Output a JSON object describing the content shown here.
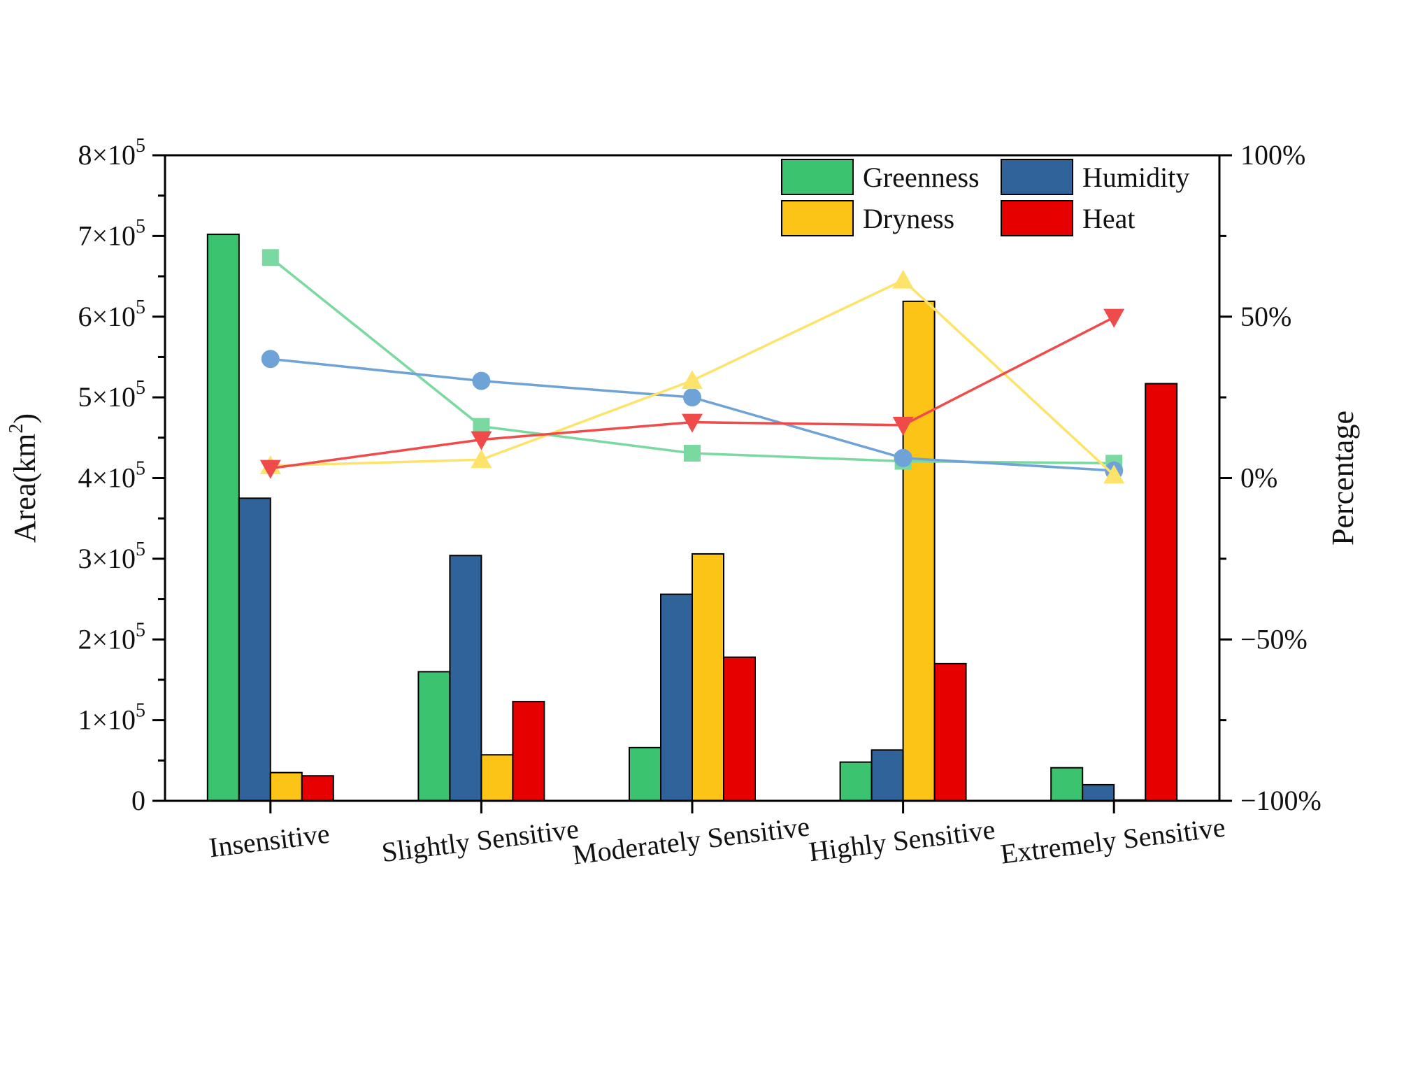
{
  "chart_data": {
    "type": "bar",
    "categories": [
      "Insensitive",
      "Slightly Sensitive",
      "Moderately Sensitive",
      "Highly Sensitive",
      "Extremely Sensitive"
    ],
    "series": [
      {
        "name": "Greenness",
        "color": "#3cc36f",
        "values": [
          702000,
          160000,
          66000,
          48000,
          41000
        ]
      },
      {
        "name": "Humidity",
        "color": "#306399",
        "values": [
          375000,
          304000,
          256000,
          63000,
          20000
        ]
      },
      {
        "name": "Dryness",
        "color": "#fbc417",
        "values": [
          35000,
          57000,
          306000,
          619000,
          1000
        ]
      },
      {
        "name": "Heat",
        "color": "#e60000",
        "values": [
          31000,
          123000,
          178000,
          170000,
          517000
        ]
      }
    ],
    "line_series": [
      {
        "name": "Greenness",
        "color": "#7ad9a0",
        "marker": "square",
        "values": [
          68.3,
          16.0,
          7.7,
          5.2,
          4.6
        ]
      },
      {
        "name": "Humidity",
        "color": "#6fa2d6",
        "marker": "circle",
        "values": [
          36.9,
          30.1,
          25.0,
          6.2,
          2.3
        ]
      },
      {
        "name": "Dryness",
        "color": "#fde36a",
        "marker": "triangle-up",
        "values": [
          3.8,
          5.7,
          30.2,
          61.3,
          0.9
        ]
      },
      {
        "name": "Heat",
        "color": "#f04b4b",
        "marker": "triangle-down",
        "values": [
          3.0,
          11.9,
          17.3,
          16.4,
          49.8
        ]
      }
    ],
    "y_left": {
      "title": "Area(km",
      "title_sup": "2",
      "title_end": ")",
      "range": [
        0,
        800000
      ],
      "tick_values": [
        0,
        100000,
        200000,
        300000,
        400000,
        500000,
        600000,
        700000,
        800000
      ],
      "tick_labels": [
        {
          "base": "0",
          "exp": ""
        },
        {
          "base": "1×10",
          "exp": "5"
        },
        {
          "base": "2×10",
          "exp": "5"
        },
        {
          "base": "3×10",
          "exp": "5"
        },
        {
          "base": "4×10",
          "exp": "5"
        },
        {
          "base": "5×10",
          "exp": "5"
        },
        {
          "base": "6×10",
          "exp": "5"
        },
        {
          "base": "7×10",
          "exp": "5"
        },
        {
          "base": "8×10",
          "exp": "5"
        }
      ]
    },
    "y_right": {
      "title": "Percentage",
      "range": [
        -100,
        100
      ],
      "tick_values": [
        -100,
        -50,
        0,
        50,
        100
      ],
      "tick_labels": [
        "−100%",
        "−50%",
        "0%",
        "50%",
        "100%"
      ]
    },
    "legend": {
      "placement": "top-right",
      "items": [
        {
          "label": "Greenness",
          "color": "#3cc36f"
        },
        {
          "label": "Humidity",
          "color": "#306399"
        },
        {
          "label": "Dryness",
          "color": "#fbc417"
        },
        {
          "label": "Heat",
          "color": "#e60000"
        }
      ]
    },
    "grid": false
  }
}
